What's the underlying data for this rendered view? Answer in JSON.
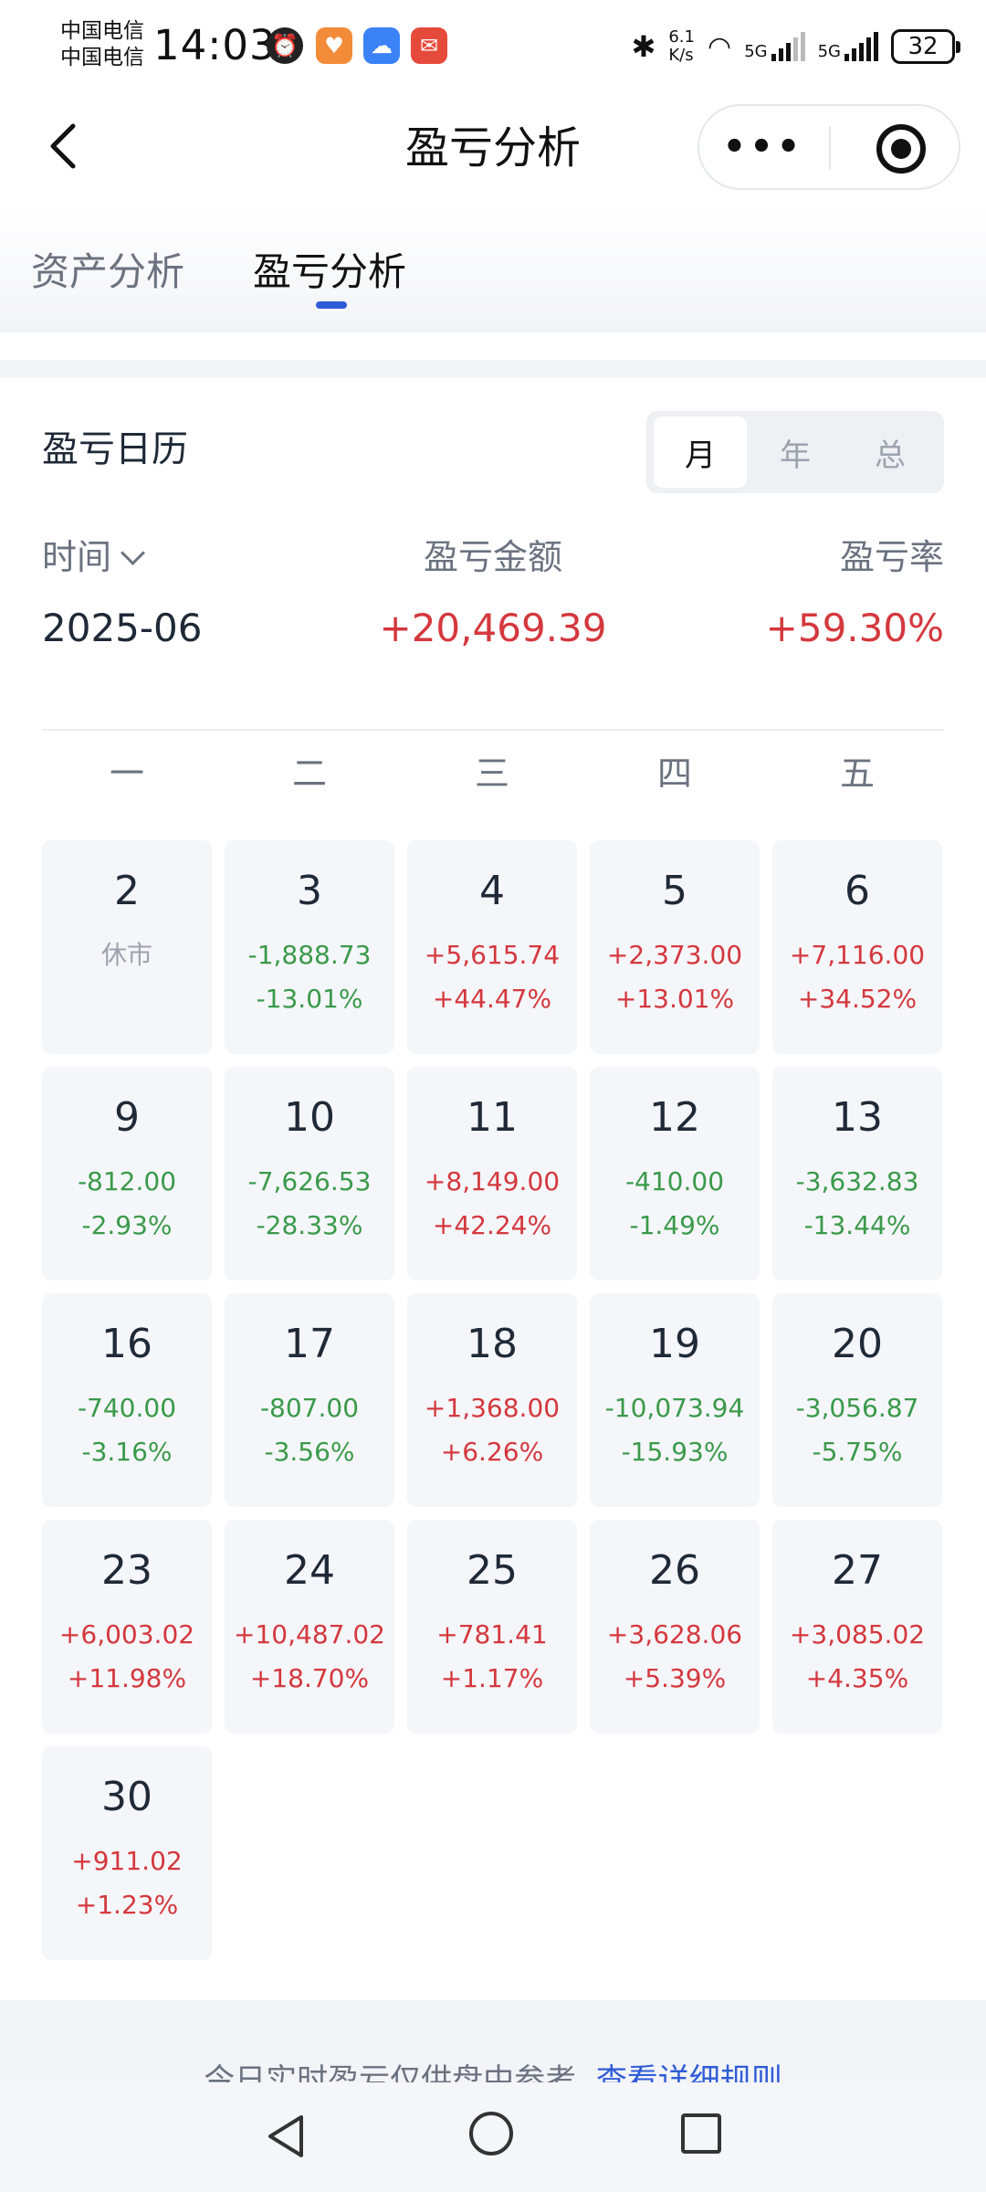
{
  "status_bar": {
    "carrier1": "中国电信",
    "carrier2": "中国电信",
    "time": "14:03",
    "net_speed_top": "6.1",
    "net_speed_bottom": "K/s",
    "signal1": "5G",
    "signal2": "5G",
    "battery": "32",
    "icons": [
      "alarm-icon",
      "app-icon-orange",
      "cloud-icon",
      "red-envelope-icon",
      "bluetooth-icon",
      "wifi-icon"
    ]
  },
  "nav": {
    "title": "盈亏分析",
    "more_label": "•••"
  },
  "tabs": [
    {
      "label": "资产分析",
      "active": false
    },
    {
      "label": "盈亏分析",
      "active": true
    }
  ],
  "calendar": {
    "title": "盈亏日历",
    "segments": [
      {
        "label": "月",
        "selected": true
      },
      {
        "label": "年",
        "selected": false
      },
      {
        "label": "总",
        "selected": false
      }
    ],
    "summary": {
      "time_label": "时间",
      "amount_label": "盈亏金额",
      "rate_label": "盈亏率",
      "period": "2025-06",
      "amount": "+20,469.39",
      "rate": "+59.30%"
    },
    "weekdays": [
      "一",
      "二",
      "三",
      "四",
      "五"
    ],
    "days": [
      {
        "day": "2",
        "amount": "休市",
        "rate": "",
        "tone": "gray"
      },
      {
        "day": "3",
        "amount": "-1,888.73",
        "rate": "-13.01%",
        "tone": "green"
      },
      {
        "day": "4",
        "amount": "+5,615.74",
        "rate": "+44.47%",
        "tone": "red"
      },
      {
        "day": "5",
        "amount": "+2,373.00",
        "rate": "+13.01%",
        "tone": "red"
      },
      {
        "day": "6",
        "amount": "+7,116.00",
        "rate": "+34.52%",
        "tone": "red"
      },
      {
        "day": "9",
        "amount": "-812.00",
        "rate": "-2.93%",
        "tone": "green"
      },
      {
        "day": "10",
        "amount": "-7,626.53",
        "rate": "-28.33%",
        "tone": "green"
      },
      {
        "day": "11",
        "amount": "+8,149.00",
        "rate": "+42.24%",
        "tone": "red"
      },
      {
        "day": "12",
        "amount": "-410.00",
        "rate": "-1.49%",
        "tone": "green"
      },
      {
        "day": "13",
        "amount": "-3,632.83",
        "rate": "-13.44%",
        "tone": "green"
      },
      {
        "day": "16",
        "amount": "-740.00",
        "rate": "-3.16%",
        "tone": "green"
      },
      {
        "day": "17",
        "amount": "-807.00",
        "rate": "-3.56%",
        "tone": "green"
      },
      {
        "day": "18",
        "amount": "+1,368.00",
        "rate": "+6.26%",
        "tone": "red"
      },
      {
        "day": "19",
        "amount": "-10,073.94",
        "rate": "-15.93%",
        "tone": "green"
      },
      {
        "day": "20",
        "amount": "-3,056.87",
        "rate": "-5.75%",
        "tone": "green"
      },
      {
        "day": "23",
        "amount": "+6,003.02",
        "rate": "+11.98%",
        "tone": "red"
      },
      {
        "day": "24",
        "amount": "+10,487.02",
        "rate": "+18.70%",
        "tone": "red"
      },
      {
        "day": "25",
        "amount": "+781.41",
        "rate": "+1.17%",
        "tone": "red"
      },
      {
        "day": "26",
        "amount": "+3,628.06",
        "rate": "+5.39%",
        "tone": "red"
      },
      {
        "day": "27",
        "amount": "+3,085.02",
        "rate": "+4.35%",
        "tone": "red"
      },
      {
        "day": "30",
        "amount": "+911.02",
        "rate": "+1.23%",
        "tone": "red"
      }
    ]
  },
  "footer": {
    "note": "今日实时盈亏仅供盘中参考",
    "link": "查看详细规则"
  },
  "colors": {
    "profit": "#d4383d",
    "loss": "#3a9a4a",
    "accent": "#2f5cd6"
  }
}
